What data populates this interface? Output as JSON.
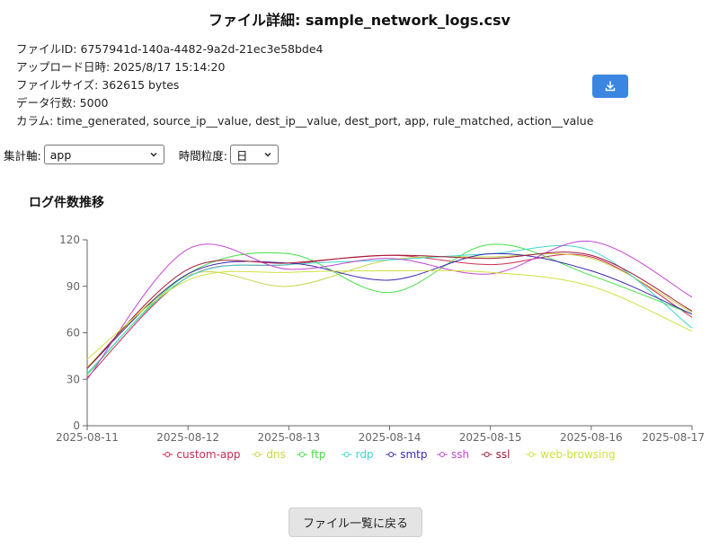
{
  "page_title": "ファイル詳細: sample_network_logs.csv",
  "meta": {
    "file_id": "ファイルID: 6757941d-140a-4482-9a2d-21ec3e58bde4",
    "upload_time": "アップロード日時: 2025/8/17 15:14:20",
    "file_size": "ファイルサイズ: 362615 bytes",
    "row_count": "データ行数: 5000",
    "columns": "カラム: time_generated, source_ip__value, dest_ip__value, dest_port, app, rule_matched, action__value"
  },
  "download_icon": "download-icon",
  "controls": {
    "axis_label": "集計軸:",
    "axis_value": "app",
    "granularity_label": "時間粒度:",
    "granularity_value": "日"
  },
  "chart_title": "ログ件数推移",
  "back_button": "ファイル一覧に戻る",
  "chart_data": {
    "type": "line",
    "x": [
      "2025-08-11",
      "2025-08-12",
      "2025-08-13",
      "2025-08-14",
      "2025-08-15",
      "2025-08-16",
      "2025-08-17"
    ],
    "ylim": [
      0,
      120
    ],
    "yticks": [
      0,
      30,
      60,
      90,
      120
    ],
    "grid": false,
    "legend": "bottom",
    "series": [
      {
        "name": "custom-app",
        "color": "#cc2b55",
        "values": [
          31,
          96,
          104,
          110,
          104,
          109,
          70
        ]
      },
      {
        "name": "dns",
        "color": "#c9d449",
        "values": [
          38,
          97,
          90,
          107,
          109,
          108,
          73
        ]
      },
      {
        "name": "ftp",
        "color": "#44e044",
        "values": [
          33,
          98,
          111,
          86,
          117,
          97,
          72
        ]
      },
      {
        "name": "rdp",
        "color": "#3fd7cd",
        "values": [
          34,
          96,
          104,
          107,
          111,
          113,
          63
        ]
      },
      {
        "name": "smtp",
        "color": "#3b2bb2",
        "values": [
          37,
          98,
          105,
          94,
          111,
          100,
          72
        ]
      },
      {
        "name": "ssh",
        "color": "#c447d4",
        "values": [
          30,
          114,
          101,
          108,
          98,
          119,
          83
        ]
      },
      {
        "name": "ssl",
        "color": "#a21a3a",
        "values": [
          37,
          101,
          105,
          110,
          108,
          110,
          74
        ]
      },
      {
        "name": "web-browsing",
        "color": "#d0e040",
        "values": [
          43,
          94,
          99,
          100,
          99,
          90,
          61
        ]
      }
    ]
  }
}
